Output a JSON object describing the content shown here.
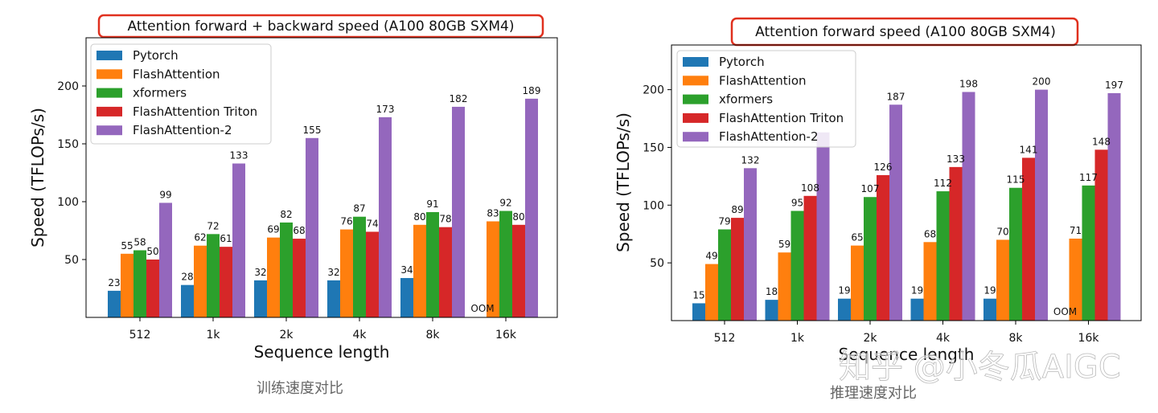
{
  "colors": {
    "Pytorch": "#1f77b4",
    "FlashAttention": "#ff7f0e",
    "xformers": "#2ca02c",
    "FlashAttention Triton": "#d62728",
    "FlashAttention-2": "#9467bd",
    "title_box": "#e0301e"
  },
  "captions": [
    "训练速度对比",
    "推理速度对比"
  ],
  "watermark": "知乎 @小冬瓜AIGC",
  "chart_data": [
    {
      "type": "bar",
      "title": "Attention forward + backward speed (A100 80GB SXM4)",
      "xlabel": "Sequence length",
      "ylabel": "Speed (TFLOPs/s)",
      "categories": [
        "512",
        "1k",
        "2k",
        "4k",
        "8k",
        "16k"
      ],
      "yticks": [
        "50",
        "100",
        "150",
        "200"
      ],
      "legend": "top-left",
      "series": [
        {
          "name": "Pytorch",
          "values": [
            23,
            28,
            32,
            32,
            34,
            null
          ],
          "labels": [
            "23",
            "28",
            "32",
            "32",
            "34",
            "OOM"
          ]
        },
        {
          "name": "FlashAttention",
          "values": [
            55,
            62,
            69,
            76,
            80,
            83
          ],
          "labels": [
            "55",
            "62",
            "69",
            "76",
            "80",
            "83"
          ]
        },
        {
          "name": "xformers",
          "values": [
            58,
            72,
            82,
            87,
            91,
            92
          ],
          "labels": [
            "58",
            "72",
            "82",
            "87",
            "91",
            "92"
          ]
        },
        {
          "name": "FlashAttention Triton",
          "values": [
            50,
            61,
            68,
            74,
            78,
            80
          ],
          "labels": [
            "50",
            "61",
            "68",
            "74",
            "78",
            "80"
          ]
        },
        {
          "name": "FlashAttention-2",
          "values": [
            99,
            133,
            155,
            173,
            182,
            189
          ],
          "labels": [
            "99",
            "133",
            "155",
            "173",
            "182",
            "189"
          ]
        }
      ]
    },
    {
      "type": "bar",
      "title": "Attention forward speed (A100 80GB SXM4)",
      "xlabel": "Sequence length",
      "ylabel": "Speed (TFLOPs/s)",
      "categories": [
        "512",
        "1k",
        "2k",
        "4k",
        "8k",
        "16k"
      ],
      "yticks": [
        "50",
        "100",
        "150",
        "200"
      ],
      "legend": "top-left",
      "series": [
        {
          "name": "Pytorch",
          "values": [
            15,
            18,
            19,
            19,
            19,
            null
          ],
          "labels": [
            "15",
            "18",
            "19",
            "19",
            "19",
            "OOM"
          ]
        },
        {
          "name": "FlashAttention",
          "values": [
            49,
            59,
            65,
            68,
            70,
            71
          ],
          "labels": [
            "49",
            "59",
            "65",
            "68",
            "70",
            "71"
          ]
        },
        {
          "name": "xformers",
          "values": [
            79,
            95,
            107,
            112,
            115,
            117
          ],
          "labels": [
            "79",
            "95",
            "107",
            "112",
            "115",
            "117"
          ]
        },
        {
          "name": "FlashAttention Triton",
          "values": [
            89,
            108,
            126,
            133,
            141,
            148
          ],
          "labels": [
            "89",
            "108",
            "126",
            "133",
            "141",
            "148"
          ]
        },
        {
          "name": "FlashAttention-2",
          "values": [
            132,
            163,
            187,
            198,
            200,
            197
          ],
          "labels": [
            "132",
            "",
            "187",
            "198",
            "200",
            "197"
          ]
        }
      ]
    }
  ]
}
